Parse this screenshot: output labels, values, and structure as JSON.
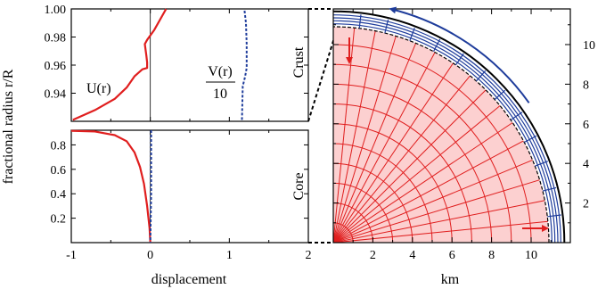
{
  "chart_data": [
    {
      "type": "line",
      "panel": "crust",
      "ylabel": "fractional radius r/R",
      "xlim": [
        -1,
        2
      ],
      "ylim": [
        0.92,
        1.0
      ],
      "yticks": [
        "0.94",
        "0.96",
        "0.98",
        "1.00"
      ],
      "side_label": "Crust",
      "series": [
        {
          "name": "U(r)",
          "color": "#e01e1e",
          "style": "solid",
          "x": [
            -0.98,
            -0.7,
            -0.45,
            -0.3,
            -0.2,
            -0.1,
            -0.04,
            -0.04,
            -0.05,
            -0.07,
            -0.04,
            0.05,
            0.2
          ],
          "y": [
            0.921,
            0.928,
            0.936,
            0.944,
            0.952,
            0.957,
            0.958,
            0.962,
            0.967,
            0.975,
            0.978,
            0.985,
            1.0
          ]
        },
        {
          "name": "V(r) / 10",
          "color": "#1e3c9b",
          "style": "dashed",
          "x": [
            1.16,
            1.17,
            1.2,
            1.22,
            1.22,
            1.21,
            1.19
          ],
          "y": [
            0.921,
            0.945,
            0.952,
            0.958,
            0.975,
            0.99,
            1.0
          ]
        }
      ],
      "annotations": {
        "u_label": "U(r)",
        "v_label_num": "V(r)",
        "v_label_den": "10"
      }
    },
    {
      "type": "line",
      "panel": "core",
      "xlabel": "displacement",
      "xlim": [
        -1,
        2
      ],
      "ylim": [
        0,
        0.92
      ],
      "xticks": [
        "-1",
        "0",
        "1",
        "2"
      ],
      "yticks": [
        "0.2",
        "0.4",
        "0.6",
        "0.8"
      ],
      "side_label": "Core",
      "series": [
        {
          "name": "U(r)",
          "color": "#e01e1e",
          "style": "solid",
          "x": [
            -1.0,
            -0.7,
            -0.45,
            -0.3,
            -0.2,
            -0.13,
            -0.08,
            -0.04,
            -0.01,
            0.0
          ],
          "y": [
            0.915,
            0.91,
            0.88,
            0.83,
            0.74,
            0.62,
            0.48,
            0.3,
            0.12,
            0.0
          ]
        },
        {
          "name": "V(r) / 10",
          "color": "#1e3c9b",
          "style": "dashed",
          "x": [
            0.01,
            0.01,
            0.0
          ],
          "y": [
            0.92,
            0.4,
            0.0
          ]
        }
      ]
    },
    {
      "type": "diagram",
      "panel": "quarter-star",
      "xlabel": "km",
      "xlim": [
        0,
        11.8
      ],
      "ylim": [
        0,
        11.8
      ],
      "xticks": [
        "2",
        "4",
        "6",
        "8",
        "10"
      ],
      "yticks": [
        "2",
        "4",
        "6",
        "8",
        "10"
      ],
      "core_radius_km": 10.9,
      "star_radius_km": 11.6,
      "core_circles_km": [
        1,
        2,
        3,
        4,
        5,
        6,
        7,
        8,
        9,
        10
      ],
      "core_rays": 16,
      "crust_rays": 13,
      "crust_circles_km": [
        11.05,
        11.2,
        11.35,
        11.5
      ],
      "colors": {
        "core_fill": "#fcd0d0",
        "core_grid": "#e01e1e",
        "crust_grid": "#1e3c9b",
        "star_edge": "#000000"
      }
    }
  ]
}
